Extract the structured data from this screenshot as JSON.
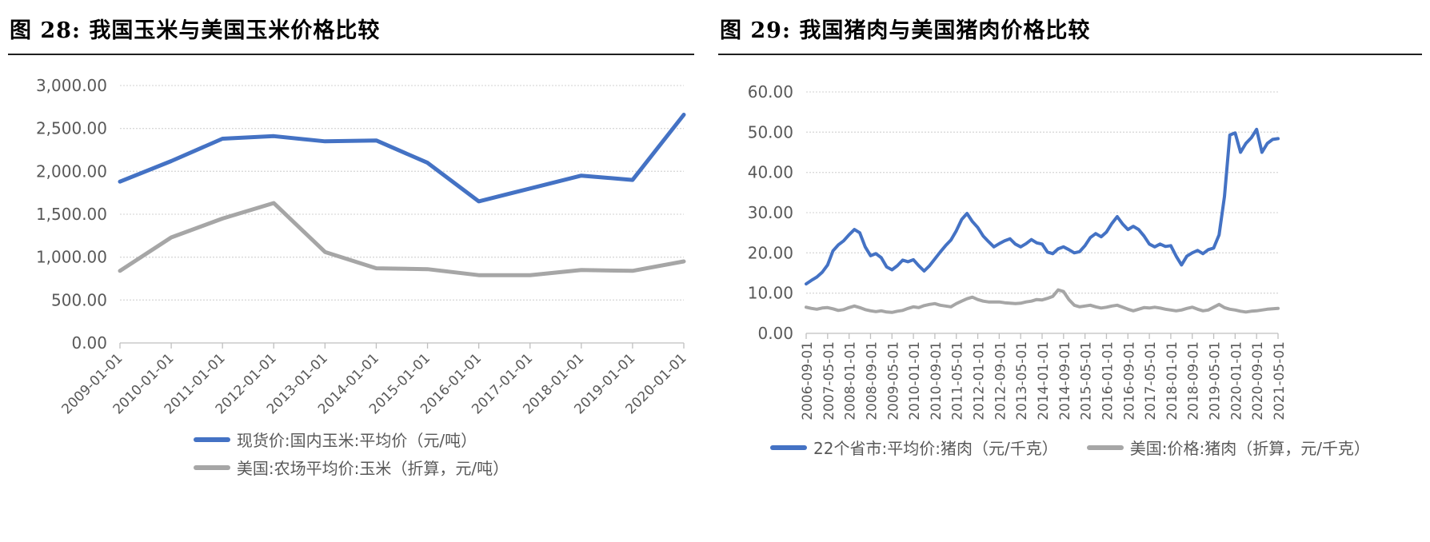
{
  "chart_data": [
    {
      "type": "line",
      "title": "图 28:  我国玉米与美国玉米价格比较",
      "ylabel": "",
      "xlabel": "",
      "ylim": [
        0,
        3000
      ],
      "yticks": [
        0,
        500,
        1000,
        1500,
        2000,
        2500,
        3000
      ],
      "ytick_labels": [
        "0.00",
        "500.00",
        "1,000.00",
        "1,500.00",
        "2,000.00",
        "2,500.00",
        "3,000.00"
      ],
      "categories": [
        "2009-01-01",
        "2010-01-01",
        "2011-01-01",
        "2012-01-01",
        "2013-01-01",
        "2014-01-01",
        "2015-01-01",
        "2016-01-01",
        "2017-01-01",
        "2018-01-01",
        "2019-01-01",
        "2020-01-01"
      ],
      "grid": true,
      "legend_position": "bottom-vertical",
      "series": [
        {
          "name": "现货价:国内玉米:平均价（元/吨）",
          "color": "#4472C4",
          "width": 5,
          "values": [
            1880,
            2120,
            2380,
            2410,
            2350,
            2360,
            2100,
            1650,
            1800,
            1950,
            1900,
            2660
          ]
        },
        {
          "name": "美国:农场平均价:玉米（折算，元/吨）",
          "color": "#A6A6A6",
          "width": 5,
          "values": [
            840,
            1230,
            1450,
            1630,
            1060,
            870,
            860,
            790,
            790,
            850,
            840,
            950
          ]
        }
      ]
    },
    {
      "type": "line",
      "title": "图 29:  我国猪肉与美国猪肉价格比较",
      "ylabel": "",
      "xlabel": "",
      "ylim": [
        0,
        60
      ],
      "yticks": [
        0,
        10,
        20,
        30,
        40,
        50,
        60
      ],
      "ytick_labels": [
        "0.00",
        "10.00",
        "20.00",
        "30.00",
        "40.00",
        "50.00",
        "60.00"
      ],
      "x_note": "series sampled every 2 months from 2006-09-01 to 2021-05-01",
      "tick_labels": [
        "2006-09-01",
        "2007-05-01",
        "2008-01-01",
        "2008-09-01",
        "2009-05-01",
        "2010-01-01",
        "2010-09-01",
        "2011-05-01",
        "2012-01-01",
        "2012-09-01",
        "2013-05-01",
        "2014-01-01",
        "2014-09-01",
        "2015-05-01",
        "2016-01-01",
        "2016-09-01",
        "2017-05-01",
        "2018-01-01",
        "2018-09-01",
        "2019-05-01",
        "2020-01-01",
        "2020-09-01",
        "2021-05-01"
      ],
      "grid": true,
      "legend_position": "bottom-horizontal",
      "series": [
        {
          "name": "22个省市:平均价:猪肉（元/千克）",
          "color": "#4472C4",
          "width": 4,
          "values": [
            12.3,
            13.2,
            14.0,
            15.2,
            17.0,
            20.5,
            22.0,
            23.0,
            24.5,
            25.8,
            25.0,
            21.5,
            19.3,
            19.8,
            18.8,
            16.5,
            15.8,
            16.8,
            18.2,
            17.8,
            18.3,
            16.8,
            15.5,
            16.8,
            18.5,
            20.2,
            21.8,
            23.2,
            25.5,
            28.3,
            29.8,
            27.8,
            26.3,
            24.2,
            22.8,
            21.5,
            22.3,
            23.0,
            23.5,
            22.2,
            21.5,
            22.3,
            23.3,
            22.5,
            22.2,
            20.2,
            19.8,
            21.0,
            21.5,
            20.8,
            20.0,
            20.3,
            21.8,
            23.8,
            24.8,
            24.0,
            25.2,
            27.3,
            29.0,
            27.2,
            25.8,
            26.6,
            25.8,
            24.2,
            22.2,
            21.5,
            22.2,
            21.6,
            21.8,
            19.2,
            17.0,
            19.2,
            20.0,
            20.6,
            19.8,
            20.8,
            21.2,
            24.5,
            34.0,
            49.3,
            49.8,
            45.0,
            47.2,
            48.6,
            50.7,
            45.0,
            47.2,
            48.2,
            48.4
          ]
        },
        {
          "name": "美国:价格:猪肉（折算，元/千克）",
          "color": "#A6A6A6",
          "width": 4,
          "values": [
            6.5,
            6.2,
            6.0,
            6.3,
            6.4,
            6.1,
            5.7,
            5.9,
            6.4,
            6.8,
            6.4,
            5.9,
            5.6,
            5.4,
            5.6,
            5.3,
            5.2,
            5.5,
            5.7,
            6.2,
            6.6,
            6.4,
            6.9,
            7.2,
            7.4,
            7.0,
            6.8,
            6.6,
            7.4,
            8.0,
            8.6,
            9.0,
            8.4,
            8.0,
            7.8,
            7.8,
            7.8,
            7.6,
            7.5,
            7.4,
            7.5,
            7.8,
            8.0,
            8.4,
            8.3,
            8.7,
            9.2,
            10.8,
            10.4,
            8.4,
            7.0,
            6.6,
            6.8,
            7.0,
            6.6,
            6.3,
            6.5,
            6.8,
            7.0,
            6.5,
            6.0,
            5.6,
            6.0,
            6.4,
            6.3,
            6.5,
            6.3,
            6.0,
            5.8,
            5.6,
            5.8,
            6.2,
            6.5,
            6.0,
            5.6,
            5.8,
            6.5,
            7.2,
            6.4,
            6.0,
            5.8,
            5.5,
            5.3,
            5.5,
            5.6,
            5.8,
            6.0,
            6.1,
            6.2
          ]
        }
      ]
    }
  ],
  "style": {
    "grid_color": "#D9D9D9",
    "axis_color": "#BFBFBF",
    "tick_text_color": "#595959",
    "blue": "#4472C4",
    "gray": "#A6A6A6"
  }
}
